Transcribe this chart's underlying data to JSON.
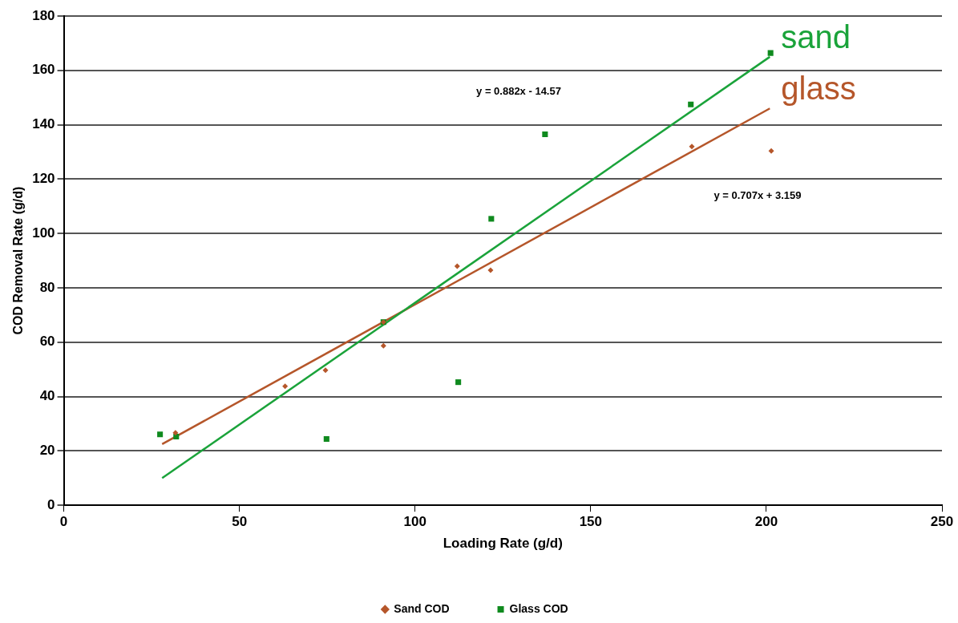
{
  "chart_data": {
    "type": "scatter",
    "xlabel": "Loading Rate (g/d)",
    "ylabel": "COD Removal Rate (g/d)",
    "xlim": [
      0,
      250
    ],
    "xticks": [
      0,
      50,
      100,
      150,
      200,
      250
    ],
    "ylim": [
      0,
      180
    ],
    "yticks": [
      0,
      20,
      40,
      60,
      80,
      100,
      120,
      140,
      160,
      180
    ],
    "grid": "y",
    "legend": "bottom",
    "series": [
      {
        "name": "Sand COD",
        "color": "#b5562a",
        "marker": "diamond",
        "x": [
          31.8,
          63,
          74.5,
          91,
          91,
          112,
          121.5,
          178.8,
          201.4
        ],
        "values": [
          26.7,
          43.8,
          49.7,
          58.7,
          67.4,
          88,
          86.5,
          132,
          130.4
        ]
      },
      {
        "name": "Glass COD",
        "color": "#0f8a1e",
        "marker": "square",
        "x": [
          27.4,
          32,
          74.8,
          91,
          112.3,
          121.7,
          137,
          178.5,
          201.2
        ],
        "values": [
          26.1,
          25.3,
          24.4,
          67.4,
          45.3,
          105.4,
          136.5,
          147.5,
          166.4
        ]
      },
      {
        "name": "sand",
        "type": "line",
        "color": "#1aa33a",
        "marker": "none",
        "x": [
          28,
          201
        ],
        "values": [
          10,
          165
        ]
      },
      {
        "name": "glass",
        "type": "line",
        "color": "#b5562a",
        "marker": "none",
        "x": [
          28,
          201
        ],
        "values": [
          22.5,
          146
        ]
      }
    ],
    "annotations": [
      "y = 0.882x - 14.57",
      "y = 0.707x + 3.159"
    ]
  }
}
